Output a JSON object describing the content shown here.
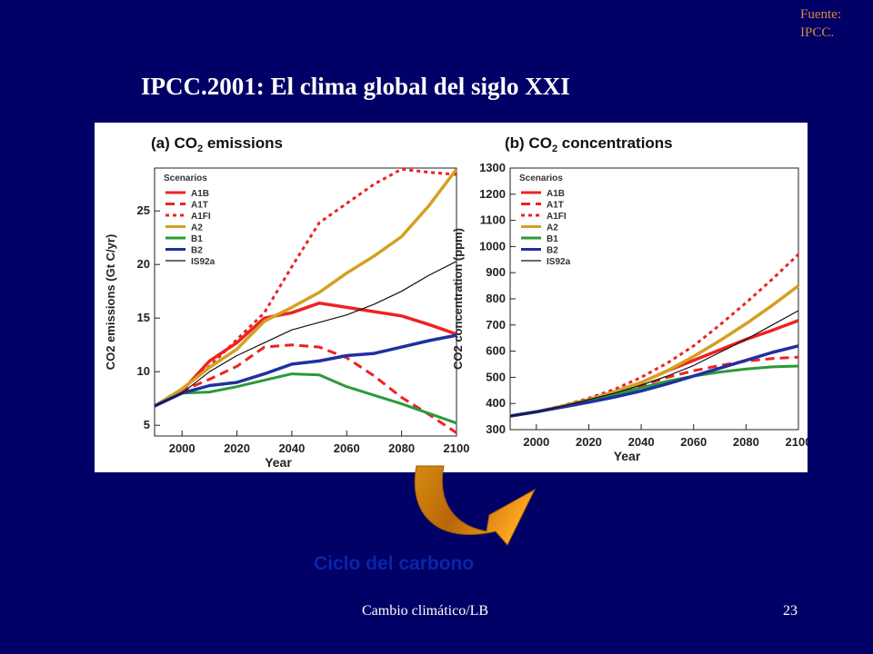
{
  "slide": {
    "source_line1": "Fuente:",
    "source_line2": "IPCC.",
    "title": "IPCC.2001: El clima global del siglo XXI",
    "carbon_cycle": "Ciclo del carbono",
    "footer": "Cambio climático/LB",
    "page_number": "23"
  },
  "chart_data": [
    {
      "type": "line",
      "title": "(a) CO2 emissions",
      "xlabel": "Year",
      "ylabel": "CO2 emissions (Gt C/yr)",
      "xlim": [
        1990,
        2100
      ],
      "ylim": [
        4,
        29
      ],
      "x_ticks": [
        2000,
        2020,
        2040,
        2060,
        2080,
        2100
      ],
      "y_ticks": [
        5,
        10,
        15,
        20,
        25
      ],
      "legend_title": "Scenarios",
      "legend_position": "top-left",
      "x": [
        1990,
        2000,
        2010,
        2020,
        2030,
        2040,
        2050,
        2060,
        2070,
        2080,
        2090,
        2100
      ],
      "series": [
        {
          "name": "A1B",
          "color": "#ee2222",
          "style": "solid",
          "width": 3.5,
          "values": [
            6.8,
            8.2,
            11.0,
            12.7,
            15.0,
            15.5,
            16.4,
            16.0,
            15.6,
            15.2,
            14.4,
            13.5
          ]
        },
        {
          "name": "A1T",
          "color": "#ee2222",
          "style": "dashed",
          "width": 3,
          "values": [
            6.8,
            8.2,
            9.3,
            10.5,
            12.3,
            12.5,
            12.3,
            11.3,
            9.6,
            7.6,
            6.0,
            4.3
          ]
        },
        {
          "name": "A1FI",
          "color": "#ee2222",
          "style": "dotted",
          "width": 3,
          "values": [
            6.8,
            8.4,
            10.5,
            13.0,
            15.5,
            19.8,
            23.9,
            25.7,
            27.5,
            28.9,
            28.6,
            28.4
          ]
        },
        {
          "name": "A2",
          "color": "#d4a020",
          "style": "solid",
          "width": 3.5,
          "values": [
            6.8,
            8.4,
            10.4,
            12.1,
            14.7,
            16.0,
            17.4,
            19.2,
            20.8,
            22.6,
            25.5,
            28.9
          ]
        },
        {
          "name": "B1",
          "color": "#2a9a3a",
          "style": "solid",
          "width": 3,
          "values": [
            6.8,
            8.0,
            8.1,
            8.6,
            9.2,
            9.8,
            9.7,
            8.6,
            7.8,
            7.0,
            6.1,
            5.2
          ]
        },
        {
          "name": "B2",
          "color": "#2030a0",
          "style": "solid",
          "width": 3.5,
          "values": [
            6.8,
            8.0,
            8.7,
            9.0,
            9.8,
            10.7,
            11.0,
            11.5,
            11.7,
            12.3,
            12.9,
            13.4
          ]
        },
        {
          "name": "IS92a",
          "color": "#111111",
          "style": "solid",
          "width": 1.2,
          "values": [
            6.8,
            8.0,
            10.0,
            11.5,
            12.7,
            13.9,
            14.6,
            15.3,
            16.3,
            17.5,
            19.0,
            20.3
          ]
        }
      ]
    },
    {
      "type": "line",
      "title": "(b) CO2 concentrations",
      "xlabel": "Year",
      "ylabel": "CO2 concentration (ppm)",
      "xlim": [
        1990,
        2100
      ],
      "ylim": [
        300,
        1300
      ],
      "x_ticks": [
        2000,
        2020,
        2040,
        2060,
        2080,
        2100
      ],
      "y_ticks": [
        300,
        400,
        500,
        600,
        700,
        800,
        900,
        1000,
        1100,
        1200,
        1300
      ],
      "legend_title": "Scenarios",
      "legend_position": "top-left",
      "x": [
        1990,
        2000,
        2010,
        2020,
        2030,
        2040,
        2050,
        2060,
        2070,
        2080,
        2090,
        2100
      ],
      "series": [
        {
          "name": "A1B",
          "color": "#ee2222",
          "style": "solid",
          "width": 3.5,
          "values": [
            352,
            368,
            390,
            415,
            445,
            480,
            525,
            565,
            605,
            645,
            680,
            717
          ]
        },
        {
          "name": "A1T",
          "color": "#ee2222",
          "style": "dashed",
          "width": 3,
          "values": [
            352,
            368,
            390,
            415,
            440,
            468,
            500,
            525,
            545,
            562,
            572,
            577
          ]
        },
        {
          "name": "A1FI",
          "color": "#ee2222",
          "style": "dotted",
          "width": 3,
          "values": [
            352,
            368,
            392,
            420,
            455,
            500,
            555,
            620,
            700,
            785,
            875,
            970
          ]
        },
        {
          "name": "A2",
          "color": "#d4a020",
          "style": "solid",
          "width": 3.5,
          "values": [
            352,
            368,
            390,
            415,
            445,
            480,
            525,
            580,
            640,
            705,
            775,
            850
          ]
        },
        {
          "name": "B1",
          "color": "#2a9a3a",
          "style": "solid",
          "width": 3,
          "values": [
            352,
            368,
            388,
            412,
            435,
            460,
            485,
            505,
            520,
            532,
            540,
            543
          ]
        },
        {
          "name": "B2",
          "color": "#2030a0",
          "style": "solid",
          "width": 3.5,
          "values": [
            352,
            368,
            386,
            405,
            425,
            448,
            475,
            505,
            535,
            565,
            595,
            620
          ]
        },
        {
          "name": "IS92a",
          "color": "#111111",
          "style": "solid",
          "width": 1.2,
          "values": [
            352,
            368,
            390,
            415,
            440,
            470,
            505,
            545,
            595,
            645,
            700,
            755
          ]
        }
      ]
    }
  ]
}
